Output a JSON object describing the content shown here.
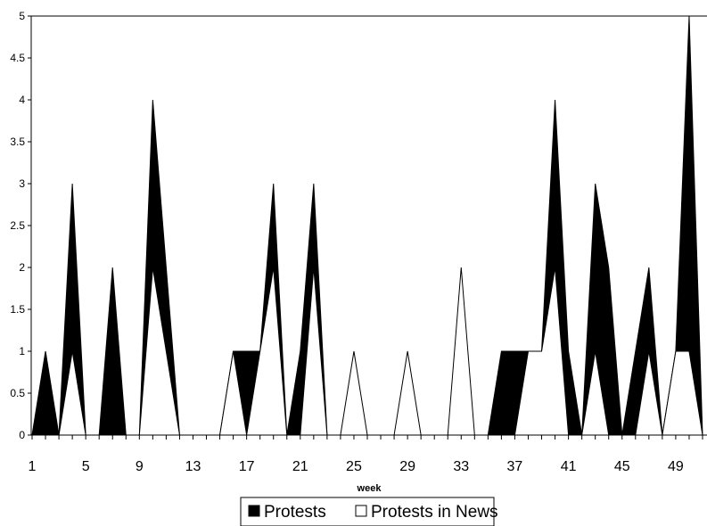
{
  "chart_data": {
    "type": "area",
    "x": [
      1,
      2,
      3,
      4,
      5,
      6,
      7,
      8,
      9,
      10,
      11,
      12,
      13,
      14,
      15,
      16,
      17,
      18,
      19,
      20,
      21,
      22,
      23,
      24,
      25,
      26,
      27,
      28,
      29,
      30,
      31,
      32,
      33,
      34,
      35,
      36,
      37,
      38,
      39,
      40,
      41,
      42,
      43,
      44,
      45,
      46,
      47,
      48,
      49,
      50,
      51
    ],
    "x_tick_labels": [
      "1",
      "5",
      "9",
      "13",
      "17",
      "21",
      "25",
      "29",
      "33",
      "37",
      "41",
      "45",
      "49"
    ],
    "y_tick_labels": [
      "0",
      "0.5",
      "1",
      "1.5",
      "2",
      "2.5",
      "3",
      "3.5",
      "4",
      "4.5",
      "5"
    ],
    "xlabel": "week",
    "ylabel": "",
    "ylim": [
      0,
      5
    ],
    "grid": false,
    "legend_position": "bottom",
    "series": [
      {
        "name": "Protests",
        "color": "#000000",
        "values": [
          0,
          1,
          0,
          3,
          0,
          0,
          2,
          0,
          0,
          4,
          2,
          0,
          0,
          0,
          0,
          1,
          1,
          1,
          3,
          0,
          1,
          3,
          0,
          0,
          0,
          0,
          0,
          0,
          0,
          0,
          0,
          0,
          0,
          0,
          0,
          1,
          1,
          1,
          1,
          4,
          1,
          0,
          3,
          2,
          0,
          1,
          2,
          0,
          1,
          5,
          0
        ]
      },
      {
        "name": "Protests in News",
        "color": "#ffffff",
        "values": [
          0,
          0,
          0,
          1,
          0,
          0,
          0,
          0,
          0,
          2,
          1,
          0,
          0,
          0,
          0,
          1,
          0,
          1,
          2,
          0,
          0,
          2,
          0,
          0,
          1,
          0,
          0,
          0,
          1,
          0,
          0,
          0,
          2,
          0,
          0,
          0,
          0,
          1,
          1,
          2,
          0,
          0,
          1,
          0,
          0,
          0,
          1,
          0,
          1,
          1,
          0
        ]
      }
    ]
  }
}
